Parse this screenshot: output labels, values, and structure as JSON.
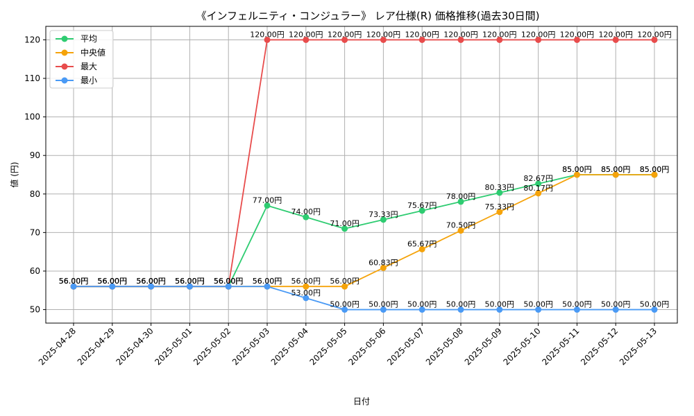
{
  "chart_data": {
    "type": "line",
    "title": "《インフェルニティ・コンジュラー》 レア仕様(R) 価格推移(過去30日間)",
    "xlabel": "日付",
    "ylabel": "値 (円)",
    "ylim": [
      46.5,
      123.5
    ],
    "yticks": [
      50,
      60,
      70,
      80,
      90,
      100,
      110,
      120
    ],
    "grid": true,
    "legend_position": "top-left",
    "categories": [
      "2025-04-28",
      "2025-04-29",
      "2025-04-30",
      "2025-05-01",
      "2025-05-02",
      "2025-05-03",
      "2025-05-04",
      "2025-05-05",
      "2025-05-06",
      "2025-05-07",
      "2025-05-08",
      "2025-05-09",
      "2025-05-10",
      "2025-05-11",
      "2025-05-12",
      "2025-05-13"
    ],
    "label_suffix": "円",
    "series": [
      {
        "name": "平均",
        "color": "#2ecc71",
        "values": [
          56.0,
          56.0,
          56.0,
          56.0,
          56.0,
          77.0,
          74.0,
          71.0,
          73.33,
          75.67,
          78.0,
          80.33,
          82.67,
          85.0,
          85.0,
          85.0
        ]
      },
      {
        "name": "中央値",
        "color": "#f5a30a",
        "values": [
          56.0,
          56.0,
          56.0,
          56.0,
          56.0,
          56.0,
          56.0,
          56.0,
          60.83,
          65.67,
          70.5,
          75.33,
          80.17,
          85.0,
          85.0,
          85.0
        ]
      },
      {
        "name": "最大",
        "color": "#e84c4c",
        "values": [
          56.0,
          56.0,
          56.0,
          56.0,
          56.0,
          120.0,
          120.0,
          120.0,
          120.0,
          120.0,
          120.0,
          120.0,
          120.0,
          120.0,
          120.0,
          120.0
        ]
      },
      {
        "name": "最小",
        "color": "#4a9af5",
        "values": [
          56.0,
          56.0,
          56.0,
          56.0,
          56.0,
          56.0,
          53.0,
          50.0,
          50.0,
          50.0,
          50.0,
          50.0,
          50.0,
          50.0,
          50.0,
          50.0
        ]
      }
    ]
  }
}
